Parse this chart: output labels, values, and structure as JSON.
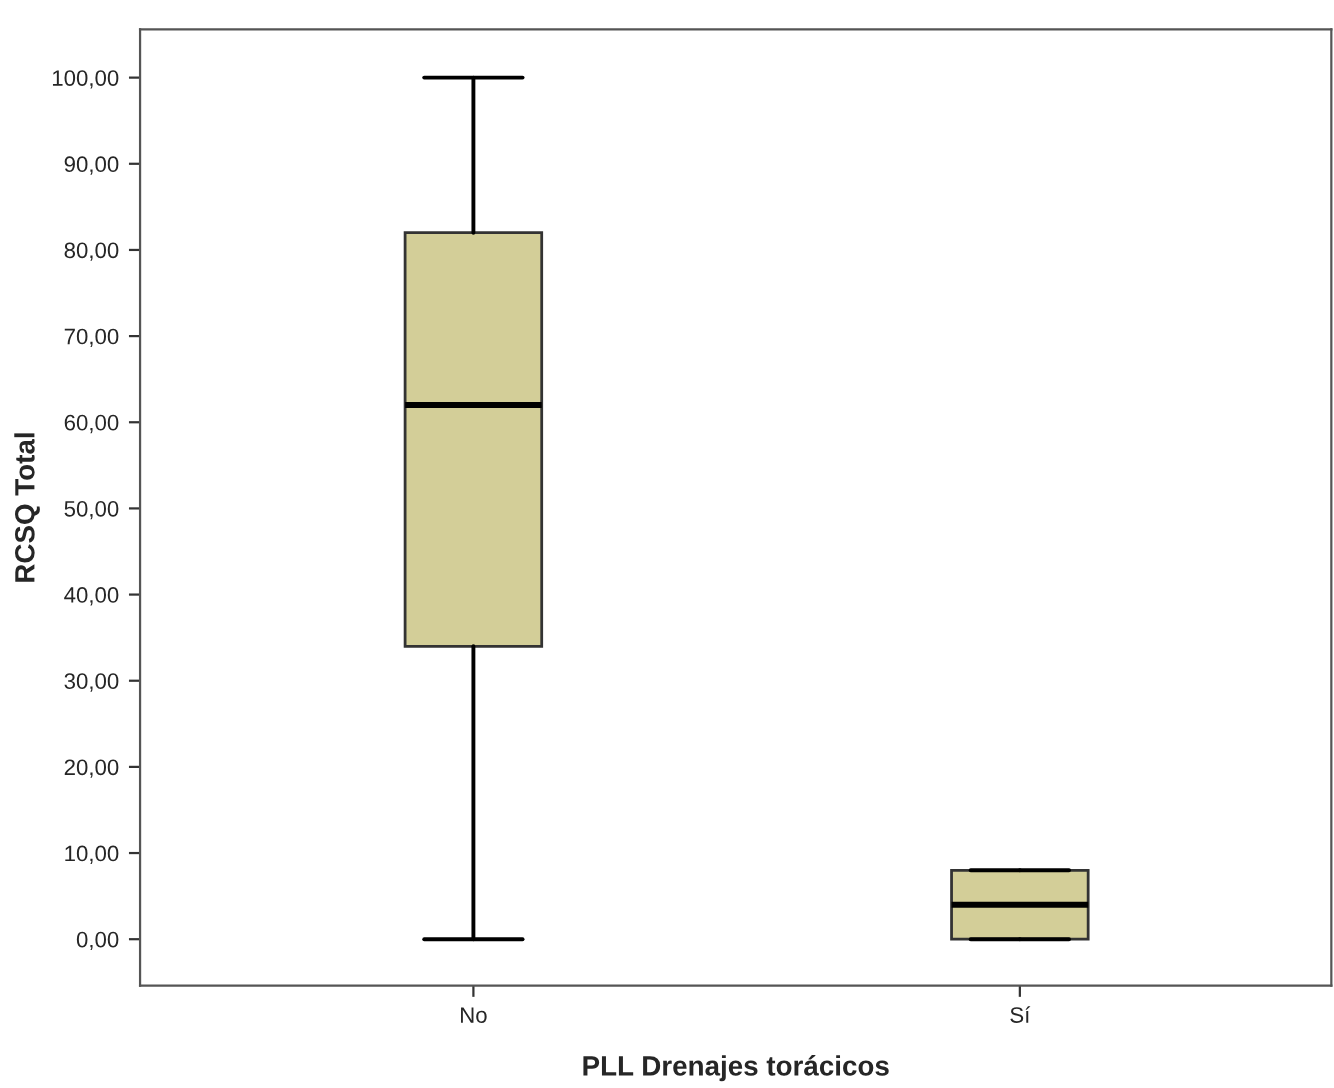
{
  "chart_data": {
    "type": "box",
    "xlabel": "PLL Drenajes torácicos",
    "ylabel": "RCSQ Total",
    "categories": [
      "No",
      "Sí"
    ],
    "color": "#d3ce98",
    "boxes": [
      {
        "low": 0,
        "q1": 34,
        "median": 62,
        "q3": 82,
        "high": 100
      },
      {
        "low": 0,
        "q1": 0,
        "median": 4,
        "q3": 8,
        "high": 8
      }
    ],
    "ylim": [
      -5.4,
      105.6
    ],
    "yticks": [
      {
        "value": 0,
        "label": "0,00"
      },
      {
        "value": 10,
        "label": "10,00"
      },
      {
        "value": 20,
        "label": "20,00"
      },
      {
        "value": 30,
        "label": "30,00"
      },
      {
        "value": 40,
        "label": "40,00"
      },
      {
        "value": 50,
        "label": "50,00"
      },
      {
        "value": 60,
        "label": "60,00"
      },
      {
        "value": 70,
        "label": "70,00"
      },
      {
        "value": 80,
        "label": "80,00"
      },
      {
        "value": 90,
        "label": "90,00"
      },
      {
        "value": 100,
        "label": "100,00"
      }
    ],
    "grid": false
  }
}
